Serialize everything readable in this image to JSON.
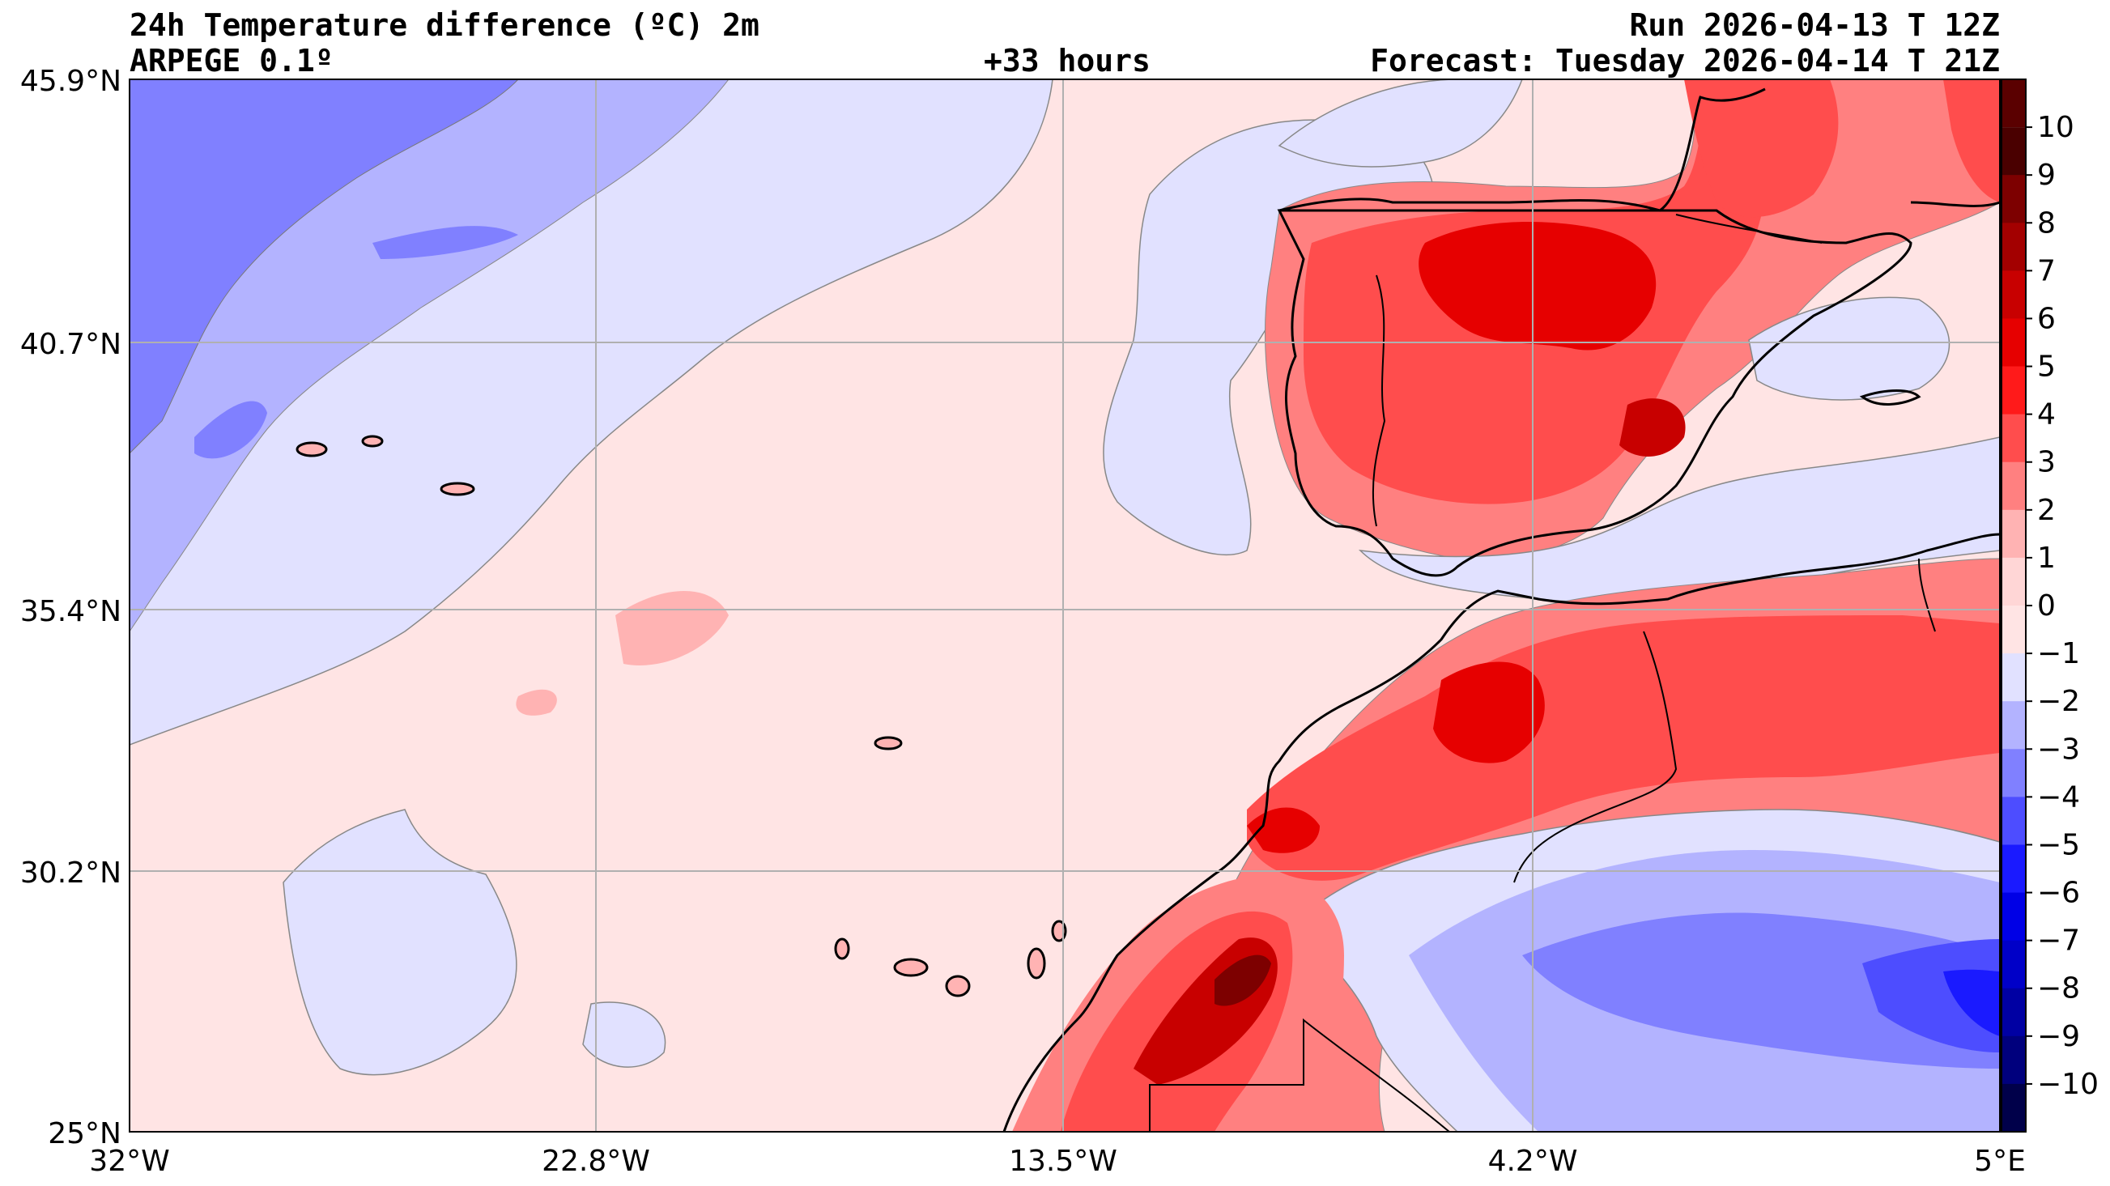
{
  "header": {
    "title": "24h Temperature difference (ºC) 2m",
    "model": "ARPEGE 0.1º",
    "lead": "+33 hours",
    "run": "Run 2026-04-13 T 12Z",
    "forecast": "Forecast: Tuesday 2026-04-14 T 21Z"
  },
  "axes": {
    "lat_labels": [
      "45.9°N",
      "40.7°N",
      "35.4°N",
      "30.2°N",
      "25°N"
    ],
    "lon_labels": [
      "32°W",
      "22.8°W",
      "13.5°W",
      "4.2°W",
      "5°E"
    ]
  },
  "colorbar": {
    "labels": [
      "10",
      "9",
      "8",
      "7",
      "6",
      "5",
      "4",
      "3",
      "2",
      "1",
      "0",
      "−1",
      "−2",
      "−3",
      "−4",
      "−5",
      "−6",
      "−7",
      "−8",
      "−9",
      "−10"
    ],
    "colors": {
      "c10": "#4a0000",
      "c9": "#7d0000",
      "c8": "#a30000",
      "c7": "#c80000",
      "c6": "#e60000",
      "c5": "#ff1a1a",
      "c4": "#ff4d4d",
      "c3": "#ff8080",
      "c2": "#ffb3b3",
      "c1": "#ffd6d6",
      "c0": "#ffe4e4",
      "m1": "#e1e1ff",
      "m2": "#b3b3ff",
      "m3": "#8080ff",
      "m4": "#4d4dff",
      "m5": "#1a1aff",
      "m6": "#0000e6",
      "m7": "#0000c8",
      "m8": "#0000a3",
      "m9": "#00007d",
      "m10": "#00004a"
    }
  }
}
